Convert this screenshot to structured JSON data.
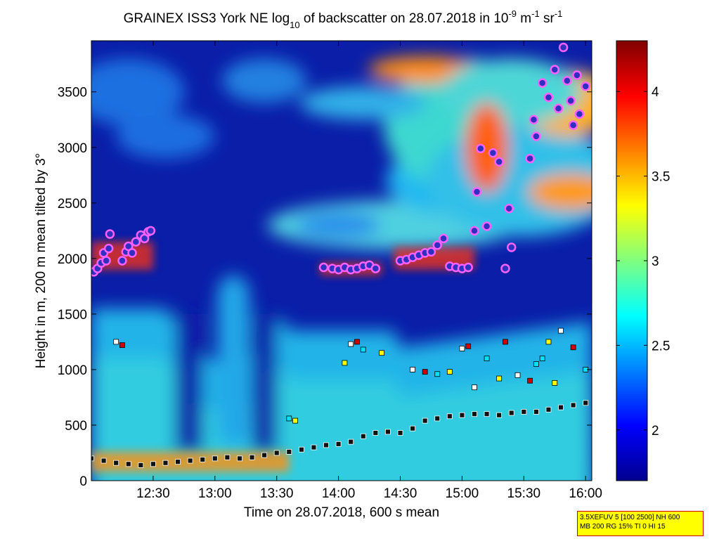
{
  "chart_data": {
    "type": "heatmap",
    "title_prefix": "GRAINEX ISS3 York NE log",
    "title_sub": "10",
    "title_middle": " of backscatter on 28.07.2018 in 10",
    "title_sup1": "-9",
    "title_unit1": " m",
    "title_sup2": "-1",
    "title_unit2": " sr",
    "title_sup3": "-1",
    "xlabel": "Time on 28.07.2018, 600 s mean",
    "ylabel": "Height in m, 200 m mean tilted by 3°",
    "x_ticks": [
      "12:30",
      "13:00",
      "13:30",
      "14:00",
      "14:30",
      "15:00",
      "15:30",
      "16:00"
    ],
    "x_tick_hours": [
      12.5,
      13.0,
      13.5,
      14.0,
      14.5,
      15.0,
      15.5,
      16.0
    ],
    "xlim_hours": [
      12.0,
      16.05
    ],
    "y_ticks": [
      0,
      500,
      1000,
      1500,
      2000,
      2500,
      3000,
      3500
    ],
    "ylim": [
      0,
      3960
    ],
    "colorbar": {
      "ticks": [
        "2",
        "2.5",
        "3",
        "3.5",
        "4"
      ],
      "tick_values": [
        2,
        2.5,
        3,
        3.5,
        4
      ],
      "range": [
        1.7,
        4.3
      ],
      "colormap": "jet"
    },
    "cloud_layer": {
      "name": "",
      "points": [
        [
          12.02,
          1880
        ],
        [
          12.05,
          1910
        ],
        [
          12.08,
          1960
        ],
        [
          12.1,
          2050
        ],
        [
          12.12,
          1980
        ],
        [
          12.14,
          2090
        ],
        [
          12.15,
          2220
        ],
        [
          12.25,
          1980
        ],
        [
          12.28,
          2060
        ],
        [
          12.3,
          2110
        ],
        [
          12.33,
          2050
        ],
        [
          12.36,
          2150
        ],
        [
          12.4,
          2210
        ],
        [
          12.43,
          2180
        ],
        [
          12.46,
          2240
        ],
        [
          12.48,
          2250
        ],
        [
          13.88,
          1920
        ],
        [
          13.95,
          1910
        ],
        [
          14.0,
          1900
        ],
        [
          14.05,
          1920
        ],
        [
          14.1,
          1900
        ],
        [
          14.15,
          1910
        ],
        [
          14.2,
          1930
        ],
        [
          14.25,
          1940
        ],
        [
          14.3,
          1910
        ],
        [
          14.5,
          1980
        ],
        [
          14.55,
          1990
        ],
        [
          14.6,
          2010
        ],
        [
          14.65,
          2030
        ],
        [
          14.7,
          2050
        ],
        [
          14.75,
          2060
        ],
        [
          14.8,
          2120
        ],
        [
          14.85,
          2180
        ],
        [
          14.9,
          1930
        ],
        [
          14.95,
          1920
        ],
        [
          15.0,
          1910
        ],
        [
          15.05,
          1920
        ],
        [
          15.1,
          2250
        ],
        [
          15.12,
          2600
        ],
        [
          15.15,
          2990
        ],
        [
          15.2,
          2290
        ],
        [
          15.25,
          2950
        ],
        [
          15.3,
          2870
        ],
        [
          15.35,
          1910
        ],
        [
          15.38,
          2450
        ],
        [
          15.4,
          2100
        ],
        [
          15.55,
          2900
        ],
        [
          15.58,
          3250
        ],
        [
          15.6,
          3100
        ],
        [
          15.65,
          3580
        ],
        [
          15.7,
          3450
        ],
        [
          15.75,
          3700
        ],
        [
          15.78,
          3350
        ],
        [
          15.82,
          3900
        ],
        [
          15.85,
          3600
        ],
        [
          15.88,
          3420
        ],
        [
          15.9,
          3200
        ],
        [
          15.93,
          3650
        ],
        [
          15.95,
          3300
        ],
        [
          16.0,
          3550
        ]
      ]
    },
    "mixing_layer": {
      "name": "",
      "points": [
        [
          12.0,
          200
        ],
        [
          12.1,
          180
        ],
        [
          12.2,
          160
        ],
        [
          12.3,
          150
        ],
        [
          12.4,
          140
        ],
        [
          12.5,
          150
        ],
        [
          12.6,
          160
        ],
        [
          12.7,
          170
        ],
        [
          12.8,
          180
        ],
        [
          12.9,
          190
        ],
        [
          13.0,
          200
        ],
        [
          13.1,
          210
        ],
        [
          13.2,
          200
        ],
        [
          13.3,
          210
        ],
        [
          13.4,
          230
        ],
        [
          13.5,
          250
        ],
        [
          13.6,
          260
        ],
        [
          13.7,
          280
        ],
        [
          13.8,
          300
        ],
        [
          13.9,
          320
        ],
        [
          14.0,
          330
        ],
        [
          14.1,
          350
        ],
        [
          14.2,
          400
        ],
        [
          14.3,
          430
        ],
        [
          14.4,
          440
        ],
        [
          14.5,
          430
        ],
        [
          14.6,
          470
        ],
        [
          14.7,
          540
        ],
        [
          14.8,
          560
        ],
        [
          14.9,
          580
        ],
        [
          15.0,
          590
        ],
        [
          15.1,
          600
        ],
        [
          15.2,
          600
        ],
        [
          15.3,
          590
        ],
        [
          15.4,
          610
        ],
        [
          15.5,
          620
        ],
        [
          15.6,
          620
        ],
        [
          15.7,
          640
        ],
        [
          15.8,
          660
        ],
        [
          15.9,
          680
        ],
        [
          16.0,
          700
        ]
      ]
    },
    "aerosol_layers": {
      "name": "",
      "points": [
        [
          12.2,
          1250
        ],
        [
          12.25,
          1220
        ],
        [
          13.6,
          560
        ],
        [
          13.65,
          540
        ],
        [
          14.1,
          1230
        ],
        [
          14.15,
          1250
        ],
        [
          14.2,
          1180
        ],
        [
          14.35,
          1150
        ],
        [
          14.6,
          1000
        ],
        [
          14.7,
          980
        ],
        [
          14.8,
          960
        ],
        [
          14.9,
          980
        ],
        [
          15.0,
          1190
        ],
        [
          15.05,
          1210
        ],
        [
          15.2,
          1100
        ],
        [
          15.3,
          920
        ],
        [
          15.45,
          950
        ],
        [
          15.55,
          900
        ],
        [
          15.65,
          1100
        ],
        [
          15.7,
          1250
        ],
        [
          15.8,
          1350
        ],
        [
          15.9,
          1200
        ],
        [
          16.0,
          1000
        ],
        [
          14.05,
          1060
        ],
        [
          15.1,
          840
        ],
        [
          15.35,
          1250
        ],
        [
          15.6,
          1050
        ],
        [
          15.75,
          880
        ]
      ]
    },
    "settings_line1": "3.5XEFUV 5 [100 2500] NH 600",
    "settings_line2": "MB 200 RG 15% TI 0 HI 15"
  }
}
